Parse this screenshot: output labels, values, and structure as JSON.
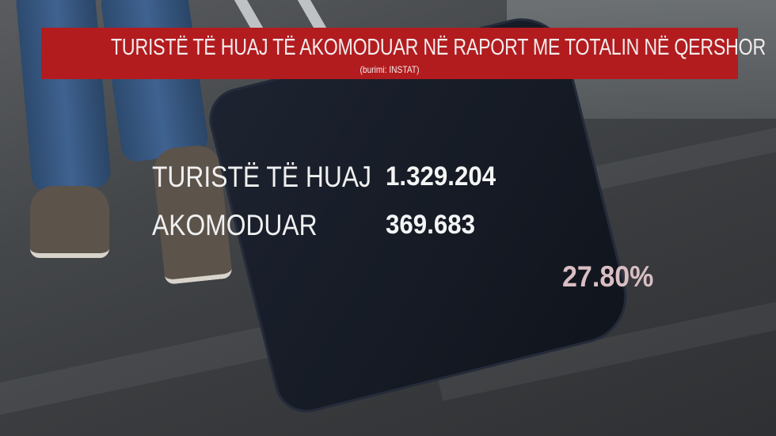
{
  "banner": {
    "title": "TURISTË TË HUAJ TË AKOMODUAR NË RAPORT ME TOTALIN NË QERSHOR",
    "source": "(burimi: INSTAT)",
    "color": "#b21c1f"
  },
  "stats": [
    {
      "label": "TURISTË TË HUAJ",
      "value": "1.329.204"
    },
    {
      "label": "AKOMODUAR",
      "value": "369.683"
    }
  ],
  "percentage": {
    "value": "27.80%",
    "color": "#d9bec3"
  }
}
